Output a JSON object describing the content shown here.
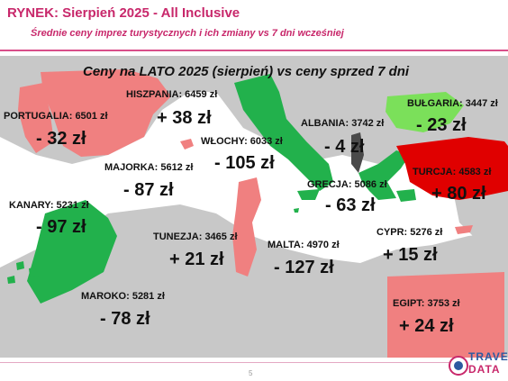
{
  "header": {
    "title": "RYNEK: Sierpień 2025 - All Inclusive",
    "subtitle": "Średnie ceny imprez turystycznych i ich zmiany vs 7 dni wcześniej"
  },
  "map": {
    "title": "Ceny na LATO 2025 (sierpień) vs ceny sprzed 7 dni",
    "colors": {
      "increase": "#f08080",
      "strong_increase": "#e00000",
      "decrease": "#22b14c",
      "light_decrease": "#7be05a",
      "neutral": "#4a4a4a",
      "land": "#c8c8c8",
      "sea": "#ffffff"
    },
    "destinations": [
      {
        "id": "portugalia",
        "label": "PORTUGALIA: 6501 zł",
        "change": "- 32 zł"
      },
      {
        "id": "hiszpania",
        "label": "HISZPANIA: 6459 zł",
        "change": "+ 38 zł"
      },
      {
        "id": "wlochy",
        "label": "WŁOCHY: 6033 zł",
        "change": "- 105 zł"
      },
      {
        "id": "albania",
        "label": "ALBANIA: 3742 zł",
        "change": "- 4 zł"
      },
      {
        "id": "bulgaria",
        "label": "BUŁGARIA: 3447 zł",
        "change": "- 23 zł"
      },
      {
        "id": "majorka",
        "label": "MAJORKA: 5612 zł",
        "change": "- 87 zł"
      },
      {
        "id": "turcja",
        "label": "TURCJA: 4583 zł",
        "change": "+ 80 zł"
      },
      {
        "id": "grecja",
        "label": "GRECJA: 5086 zł",
        "change": "- 63 zł"
      },
      {
        "id": "kanary",
        "label": "KANARY: 5231 zł",
        "change": "- 97 zł"
      },
      {
        "id": "tunezja",
        "label": "TUNEZJA: 3465 zł",
        "change": "+ 21 zł"
      },
      {
        "id": "malta",
        "label": "MALTA: 4970 zł",
        "change": "- 127 zł"
      },
      {
        "id": "cypr",
        "label": "CYPR: 5276 zł",
        "change": "+ 15 zł"
      },
      {
        "id": "maroko",
        "label": "MAROKO: 5281 zł",
        "change": "- 78 zł"
      },
      {
        "id": "egipt",
        "label": "EGIPT: 3753 zł",
        "change": "+ 24 zł"
      }
    ]
  },
  "footer": {
    "page_number": "5",
    "logo_line1": "TRAVEL",
    "logo_line2": "DATA"
  }
}
